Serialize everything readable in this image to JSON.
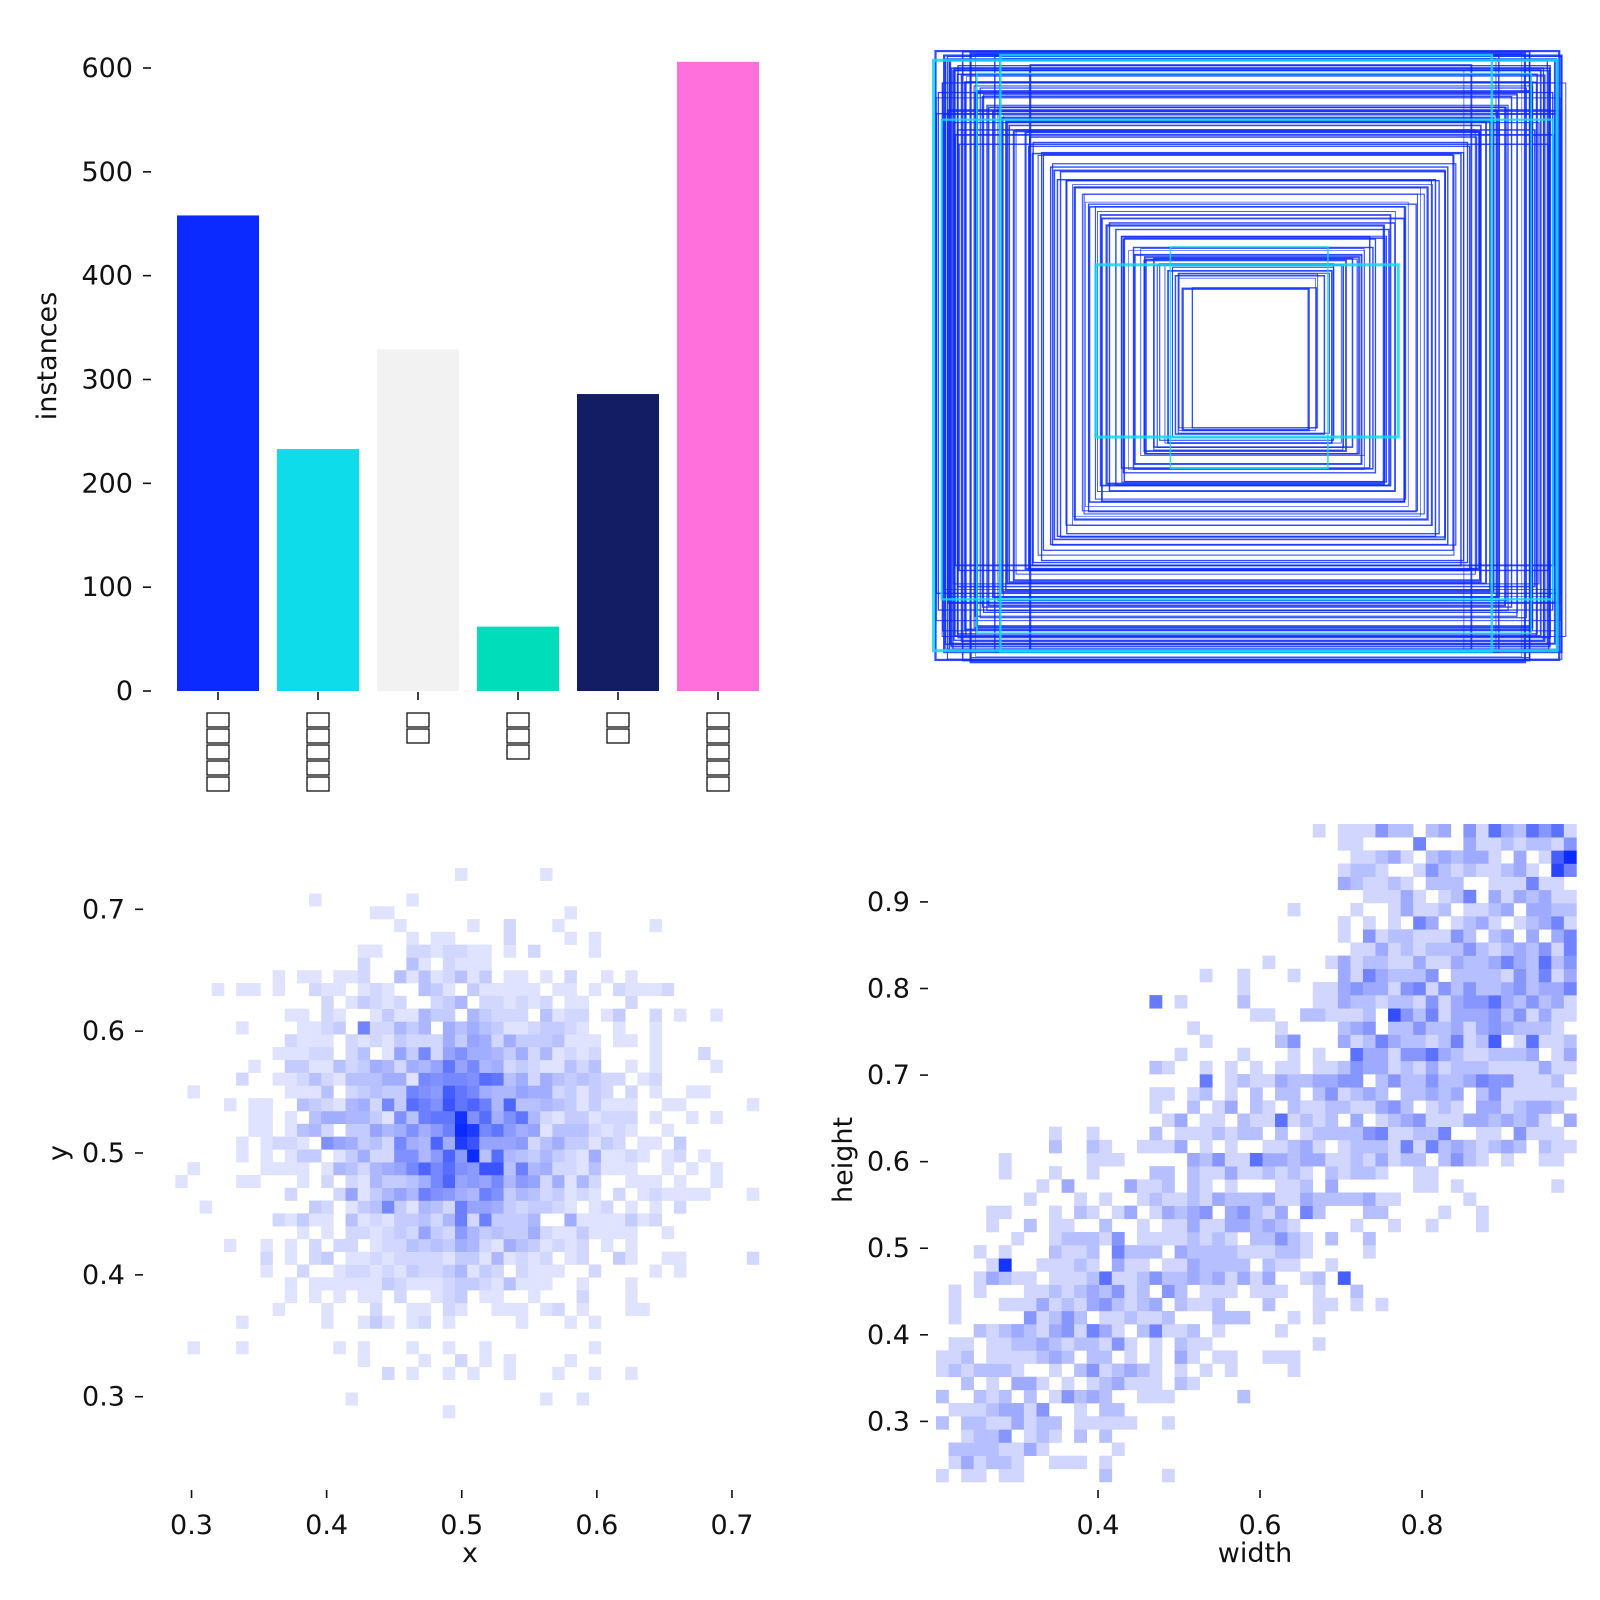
{
  "chart_data": [
    {
      "type": "bar",
      "title": "",
      "xlabel": "",
      "ylabel": "instances",
      "ylim": [
        0,
        605
      ],
      "yticks": [
        0,
        100,
        200,
        300,
        400,
        500,
        600
      ],
      "categories": [
        "□□□□□",
        "□□□□□",
        "□□",
        "□□□",
        "□□",
        "□□□□□"
      ],
      "category_char_counts": [
        5,
        5,
        2,
        3,
        2,
        5
      ],
      "values": [
        458,
        233,
        329,
        62,
        286,
        606
      ],
      "colors": [
        "#0A2AFF",
        "#0EDCEB",
        "#F2F2F2",
        "#00DDBB",
        "#131D63",
        "#FF70DD"
      ]
    },
    {
      "type": "box_overlay",
      "title": "",
      "description": "centered bounding-box outlines for every instance (width x height, normalized)",
      "box_sizes": [
        [
          0.99,
          0.99
        ],
        [
          0.98,
          0.97
        ],
        [
          0.97,
          0.96
        ],
        [
          0.96,
          0.95
        ],
        [
          0.95,
          0.94
        ],
        [
          0.94,
          0.93
        ],
        [
          0.93,
          0.92
        ],
        [
          0.92,
          0.91
        ],
        [
          0.9,
          0.89
        ],
        [
          0.88,
          0.87
        ],
        [
          0.86,
          0.85
        ],
        [
          0.84,
          0.83
        ],
        [
          0.82,
          0.81
        ],
        [
          0.8,
          0.79
        ],
        [
          0.78,
          0.77
        ],
        [
          0.76,
          0.75
        ],
        [
          0.74,
          0.73
        ],
        [
          0.72,
          0.71
        ],
        [
          0.7,
          0.69
        ],
        [
          0.68,
          0.67
        ],
        [
          0.66,
          0.65
        ],
        [
          0.64,
          0.62
        ],
        [
          0.62,
          0.6
        ],
        [
          0.6,
          0.58
        ],
        [
          0.58,
          0.56
        ],
        [
          0.56,
          0.54
        ],
        [
          0.54,
          0.52
        ],
        [
          0.52,
          0.5
        ],
        [
          0.5,
          0.48
        ],
        [
          0.48,
          0.46
        ],
        [
          0.46,
          0.44
        ],
        [
          0.44,
          0.42
        ],
        [
          0.42,
          0.4
        ],
        [
          0.4,
          0.38
        ],
        [
          0.38,
          0.36
        ],
        [
          0.36,
          0.34
        ],
        [
          0.34,
          0.32
        ],
        [
          0.32,
          0.31
        ],
        [
          0.3,
          0.3
        ],
        [
          0.28,
          0.29
        ],
        [
          0.26,
          0.28
        ],
        [
          0.24,
          0.26
        ],
        [
          0.22,
          0.25
        ],
        [
          0.2,
          0.23
        ],
        [
          0.99,
          0.9
        ],
        [
          0.97,
          0.8
        ],
        [
          0.95,
          0.7
        ],
        [
          0.99,
          0.78
        ],
        [
          0.9,
          0.99
        ],
        [
          0.8,
          0.97
        ],
        [
          0.7,
          0.95
        ],
        [
          0.88,
          0.99
        ],
        [
          0.99,
          0.85
        ],
        [
          0.93,
          0.75
        ]
      ],
      "highlight_boxes": [
        [
          0.88,
          0.91
        ],
        [
          0.97,
          0.78
        ],
        [
          0.78,
          0.97
        ],
        [
          0.48,
          0.28
        ],
        [
          0.25,
          0.36
        ],
        [
          0.99,
          0.96
        ]
      ],
      "box_color": "#0A2AFF",
      "highlight_color": "#0EDCEB"
    },
    {
      "type": "heatmap",
      "title": "",
      "xlabel": "x",
      "ylabel": "y",
      "xlim": [
        0.27,
        0.74
      ],
      "ylim": [
        0.23,
        0.77
      ],
      "xticks": [
        0.3,
        0.4,
        0.5,
        0.6,
        0.7
      ],
      "yticks": [
        0.3,
        0.4,
        0.5,
        0.6,
        0.7
      ],
      "xtick_labels": [
        "0.3",
        "0.4",
        "0.5",
        "0.6",
        "0.7"
      ],
      "ytick_labels": [
        "0.3",
        "0.4",
        "0.5",
        "0.6",
        "0.7"
      ],
      "bin_size": [
        0.009,
        0.0105
      ],
      "center": [
        0.5,
        0.515
      ],
      "spread": [
        0.07,
        0.07
      ],
      "samples": 2100,
      "seed": 7,
      "hotspots": [
        [
          0.503,
          0.52,
          1.0
        ],
        [
          0.497,
          0.51,
          0.9
        ],
        [
          0.51,
          0.5,
          0.6
        ],
        [
          0.49,
          0.475,
          0.5
        ],
        [
          0.425,
          0.6,
          0.5
        ],
        [
          0.465,
          0.545,
          0.5
        ]
      ],
      "color": "#0A2AFF"
    },
    {
      "type": "heatmap",
      "title": "",
      "xlabel": "width",
      "ylabel": "height",
      "xlim": [
        0.2,
        0.99
      ],
      "ylim": [
        0.23,
        0.99
      ],
      "xticks": [
        0.4,
        0.6,
        0.8
      ],
      "yticks": [
        0.3,
        0.4,
        0.5,
        0.6,
        0.7,
        0.8,
        0.9
      ],
      "xtick_labels": [
        "0.4",
        "0.6",
        "0.8"
      ],
      "ytick_labels": [
        "0.3",
        "0.4",
        "0.5",
        "0.6",
        "0.7",
        "0.8",
        "0.9"
      ],
      "bin_size": [
        0.0155,
        0.0152
      ],
      "trend": [
        [
          0.22,
          0.28
        ],
        [
          0.98,
          0.88
        ]
      ],
      "spread": 0.1,
      "samples": 1500,
      "seed": 13,
      "hotspots": [
        [
          0.29,
          0.48,
          0.95
        ],
        [
          0.975,
          0.94,
          0.85
        ],
        [
          0.71,
          0.465,
          0.7
        ],
        [
          0.82,
          0.73,
          0.6
        ],
        [
          0.47,
          0.78,
          0.55
        ],
        [
          0.53,
          0.695,
          0.55
        ],
        [
          0.96,
          0.88,
          0.5
        ]
      ],
      "color": "#0A2AFF"
    }
  ]
}
